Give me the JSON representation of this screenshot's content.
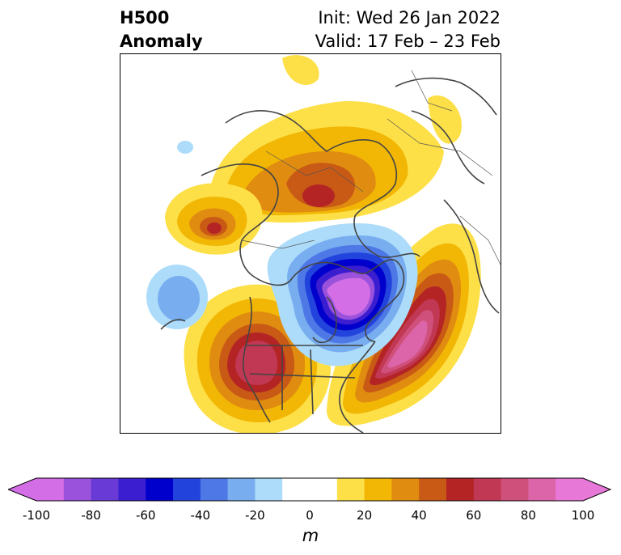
{
  "header": {
    "title_line1": "H500",
    "title_line2": "Anomaly",
    "init": "Init: Wed 26 Jan 2022",
    "valid": "Valid: 17 Feb – 23 Feb"
  },
  "colorbar": {
    "units": "m",
    "ticks": [
      "-100",
      "-80",
      "-60",
      "-40",
      "-20",
      "0",
      "20",
      "40",
      "60",
      "80",
      "100"
    ],
    "levels": [
      "#d46ee6",
      "#9a52dc",
      "#6a3ad6",
      "#3a1ed0",
      "#0000cc",
      "#2244dd",
      "#4e78e6",
      "#78aef0",
      "#acdcfa",
      "#ffffff",
      "#ffffff",
      "#fde047",
      "#f2b705",
      "#e08c10",
      "#c85a16",
      "#b42424",
      "#c13854",
      "#cf507a",
      "#dc64a8",
      "#e878d8"
    ],
    "extend": "both"
  },
  "colors": {
    "neg_100": "#d46ee6",
    "neg_60": "#0000cc",
    "neg_20": "#acdcfa",
    "pos_20": "#fde047",
    "pos_40": "#e08c10",
    "pos_60": "#b42424",
    "pos_100": "#e878d8",
    "coastline": "#444444"
  }
}
